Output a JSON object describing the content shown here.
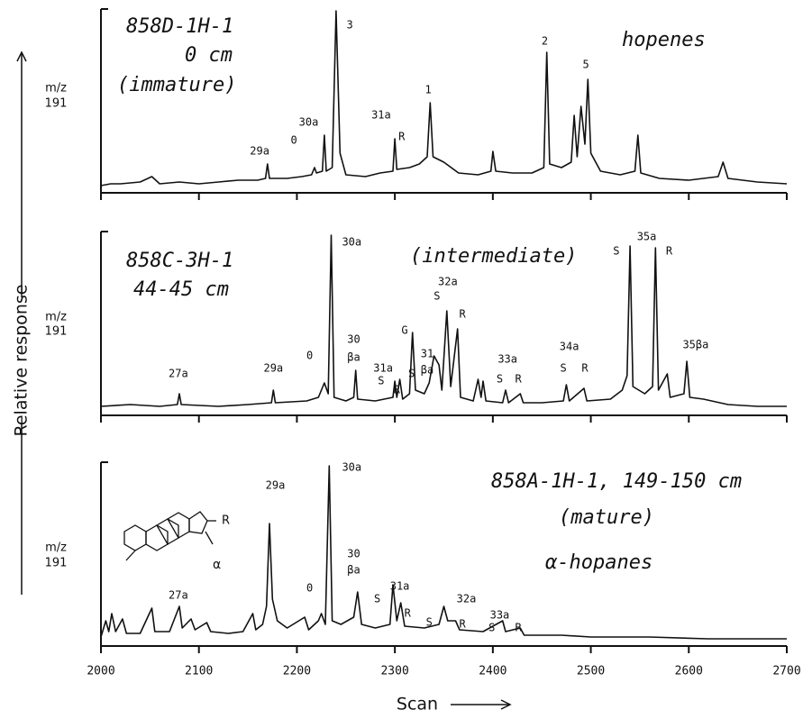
{
  "y_label": "Relative response",
  "x_label": "Scan",
  "chart_data": [
    {
      "type": "line",
      "xlim": [
        2000,
        2700
      ],
      "ylim": [
        0,
        100
      ],
      "texts": [
        "858D-1H-1",
        "0 cm",
        "(immature)",
        "hopenes"
      ],
      "mz_label": [
        "m/z",
        "191"
      ],
      "x": [
        2000,
        2010,
        2020,
        2040,
        2052,
        2060,
        2080,
        2100,
        2120,
        2140,
        2160,
        2168,
        2170,
        2172,
        2190,
        2205,
        2215,
        2218,
        2220,
        2226,
        2228,
        2230,
        2236,
        2240,
        2244,
        2250,
        2270,
        2285,
        2298,
        2300,
        2302,
        2315,
        2325,
        2333,
        2336,
        2339,
        2350,
        2365,
        2385,
        2398,
        2400,
        2403,
        2420,
        2440,
        2452,
        2455,
        2458,
        2470,
        2480,
        2483,
        2486,
        2490,
        2494,
        2497,
        2500,
        2510,
        2530,
        2545,
        2548,
        2551,
        2570,
        2600,
        2630,
        2635,
        2640,
        2670,
        2700
      ],
      "values": [
        2,
        3,
        3,
        4,
        7,
        3,
        4,
        3,
        4,
        5,
        5,
        6,
        14,
        6,
        6,
        7,
        8,
        12,
        9,
        10,
        30,
        10,
        12,
        99,
        20,
        8,
        7,
        9,
        10,
        28,
        11,
        12,
        14,
        18,
        48,
        18,
        15,
        9,
        8,
        10,
        21,
        10,
        9,
        9,
        12,
        76,
        14,
        12,
        15,
        41,
        18,
        46,
        25,
        61,
        20,
        10,
        8,
        10,
        30,
        9,
        6,
        5,
        7,
        15,
        6,
        4,
        3
      ],
      "annotations": [
        {
          "text": "29a",
          "x": 2162,
          "y": 21
        },
        {
          "text": "0",
          "x": 2197,
          "y": 27
        },
        {
          "text": "30a",
          "x": 2212,
          "y": 37
        },
        {
          "text": "3",
          "x": 2254,
          "y": 91
        },
        {
          "text": "31a",
          "x": 2286,
          "y": 41
        },
        {
          "text": "R",
          "x": 2307,
          "y": 29
        },
        {
          "text": "1",
          "x": 2334,
          "y": 55
        },
        {
          "text": "2",
          "x": 2453,
          "y": 82
        },
        {
          "text": "5",
          "x": 2495,
          "y": 69
        }
      ]
    },
    {
      "type": "line",
      "xlim": [
        2000,
        2700
      ],
      "ylim": [
        0,
        100
      ],
      "texts": [
        "858C-3H-1",
        "44-45 cm",
        "(intermediate)"
      ],
      "mz_label": [
        "m/z",
        "191"
      ],
      "x": [
        2000,
        2030,
        2060,
        2078,
        2080,
        2082,
        2120,
        2150,
        2174,
        2176,
        2178,
        2210,
        2222,
        2228,
        2232,
        2235,
        2238,
        2250,
        2258,
        2260,
        2262,
        2280,
        2298,
        2300,
        2302,
        2305,
        2308,
        2315,
        2318,
        2321,
        2330,
        2335,
        2340,
        2345,
        2348,
        2353,
        2357,
        2364,
        2367,
        2380,
        2385,
        2388,
        2390,
        2393,
        2410,
        2413,
        2416,
        2428,
        2431,
        2450,
        2472,
        2475,
        2478,
        2493,
        2496,
        2520,
        2532,
        2537,
        2540,
        2543,
        2555,
        2563,
        2566,
        2569,
        2578,
        2581,
        2595,
        2598,
        2601,
        2615,
        2640,
        2670,
        2700
      ],
      "values": [
        3,
        4,
        3,
        4,
        10,
        4,
        3,
        4,
        5,
        12,
        5,
        6,
        8,
        16,
        10,
        98,
        8,
        6,
        8,
        23,
        7,
        6,
        8,
        17,
        8,
        18,
        7,
        10,
        44,
        12,
        10,
        16,
        31,
        26,
        12,
        56,
        14,
        46,
        8,
        6,
        18,
        8,
        17,
        6,
        5,
        12,
        5,
        10,
        5,
        5,
        6,
        15,
        6,
        13,
        6,
        7,
        12,
        20,
        92,
        14,
        10,
        14,
        91,
        12,
        21,
        8,
        10,
        28,
        8,
        7,
        4,
        3,
        3
      ],
      "annotations": [
        {
          "text": "27a",
          "x": 2079,
          "y": 21
        },
        {
          "text": "29a",
          "x": 2176,
          "y": 24
        },
        {
          "text": "0",
          "x": 2213,
          "y": 31
        },
        {
          "text": "30a",
          "x": 2256,
          "y": 94
        },
        {
          "text": "30",
          "x": 2258,
          "y": 40
        },
        {
          "text": "βa",
          "x": 2258,
          "y": 30
        },
        {
          "text": "31a",
          "x": 2288,
          "y": 24
        },
        {
          "text": "S",
          "x": 2286,
          "y": 17
        },
        {
          "text": "R",
          "x": 2302,
          "y": 12
        },
        {
          "text": "G",
          "x": 2310,
          "y": 45
        },
        {
          "text": "S",
          "x": 2317,
          "y": 21
        },
        {
          "text": "31",
          "x": 2333,
          "y": 32
        },
        {
          "text": "βa",
          "x": 2333,
          "y": 23
        },
        {
          "text": "S",
          "x": 2343,
          "y": 64
        },
        {
          "text": "32a",
          "x": 2354,
          "y": 72
        },
        {
          "text": "R",
          "x": 2369,
          "y": 54
        },
        {
          "text": "33a",
          "x": 2415,
          "y": 29
        },
        {
          "text": "S",
          "x": 2407,
          "y": 18
        },
        {
          "text": "R",
          "x": 2426,
          "y": 18
        },
        {
          "text": "34a",
          "x": 2478,
          "y": 36
        },
        {
          "text": "S",
          "x": 2472,
          "y": 24
        },
        {
          "text": "R",
          "x": 2494,
          "y": 24
        },
        {
          "text": "S",
          "x": 2526,
          "y": 89
        },
        {
          "text": "35a",
          "x": 2557,
          "y": 97
        },
        {
          "text": "R",
          "x": 2580,
          "y": 89
        },
        {
          "text": "35βa",
          "x": 2607,
          "y": 37
        }
      ]
    },
    {
      "type": "line",
      "xlim": [
        2000,
        2700
      ],
      "ylim": [
        0,
        100
      ],
      "xticks": [
        2000,
        2100,
        2200,
        2300,
        2400,
        2500,
        2600,
        2700
      ],
      "texts": [
        "858A-1H-1, 149-150 cm",
        "(mature)",
        "α-hopanes"
      ],
      "mz_label": [
        "m/z",
        "191"
      ],
      "structure_labels": [
        "R",
        "α"
      ],
      "x": [
        2000,
        2005,
        2008,
        2011,
        2015,
        2022,
        2026,
        2040,
        2052,
        2055,
        2070,
        2080,
        2083,
        2092,
        2096,
        2108,
        2112,
        2130,
        2145,
        2155,
        2158,
        2165,
        2169,
        2172,
        2175,
        2180,
        2190,
        2208,
        2212,
        2222,
        2225,
        2229,
        2233,
        2236,
        2245,
        2258,
        2262,
        2266,
        2280,
        2295,
        2298,
        2302,
        2306,
        2310,
        2330,
        2345,
        2350,
        2354,
        2362,
        2366,
        2390,
        2410,
        2413,
        2428,
        2432,
        2470,
        2500,
        2560,
        2620,
        2700
      ],
      "values": [
        3,
        12,
        6,
        16,
        6,
        13,
        5,
        5,
        19,
        6,
        6,
        20,
        8,
        13,
        7,
        11,
        6,
        5,
        6,
        16,
        7,
        10,
        20,
        66,
        24,
        12,
        8,
        14,
        7,
        12,
        16,
        10,
        98,
        12,
        10,
        14,
        28,
        10,
        8,
        10,
        32,
        12,
        22,
        9,
        8,
        10,
        20,
        12,
        12,
        7,
        6,
        12,
        6,
        8,
        4,
        4,
        3,
        3,
        2,
        2
      ],
      "annotations": [
        {
          "text": "30a",
          "x": 2256,
          "y": 97
        },
        {
          "text": "29a",
          "x": 2178,
          "y": 87
        },
        {
          "text": "27a",
          "x": 2079,
          "y": 26
        },
        {
          "text": "0",
          "x": 2213,
          "y": 30
        },
        {
          "text": "30",
          "x": 2258,
          "y": 49
        },
        {
          "text": "βa",
          "x": 2258,
          "y": 40
        },
        {
          "text": "S",
          "x": 2282,
          "y": 24
        },
        {
          "text": "31a",
          "x": 2305,
          "y": 31
        },
        {
          "text": "R",
          "x": 2313,
          "y": 16
        },
        {
          "text": "S",
          "x": 2335,
          "y": 11
        },
        {
          "text": "32a",
          "x": 2373,
          "y": 24
        },
        {
          "text": "R",
          "x": 2369,
          "y": 10
        },
        {
          "text": "S",
          "x": 2399,
          "y": 8
        },
        {
          "text": "33a",
          "x": 2407,
          "y": 15
        },
        {
          "text": "R",
          "x": 2426,
          "y": 8
        }
      ]
    }
  ]
}
